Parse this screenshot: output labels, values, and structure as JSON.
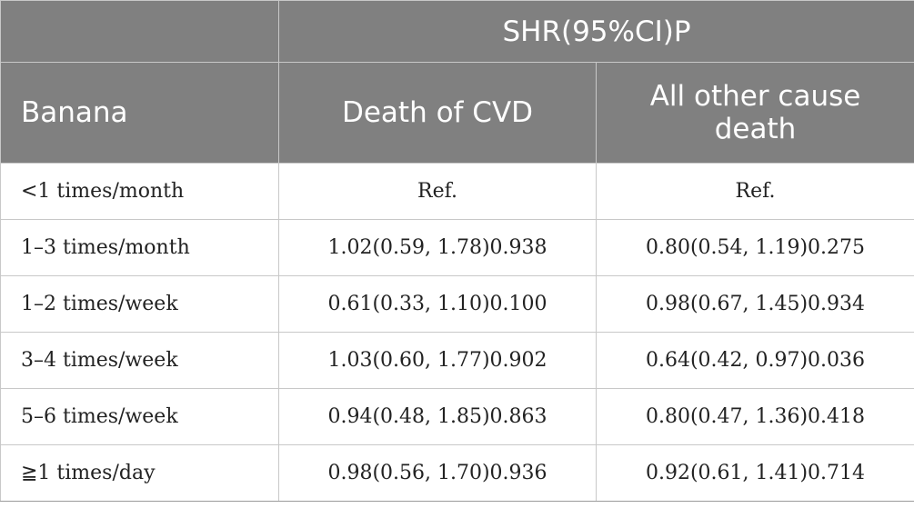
{
  "table": {
    "group_header": "SHR(95%CI)P",
    "columns": [
      "Banana",
      "Death of CVD",
      "All other cause death"
    ],
    "rows": [
      {
        "label": "<1 times/month",
        "cvd": "Ref.",
        "other": "Ref."
      },
      {
        "label": "1–3 times/month",
        "cvd": "1.02(0.59, 1.78)0.938",
        "other": "0.80(0.54, 1.19)0.275"
      },
      {
        "label": "1–2 times/week",
        "cvd": "0.61(0.33, 1.10)0.100",
        "other": "0.98(0.67, 1.45)0.934"
      },
      {
        "label": "3–4 times/week",
        "cvd": "1.03(0.60, 1.77)0.902",
        "other": "0.64(0.42, 0.97)0.036"
      },
      {
        "label": "5–6 times/week",
        "cvd": "0.94(0.48, 1.85)0.863",
        "other": "0.80(0.47, 1.36)0.418"
      },
      {
        "label": "≧1 times/day",
        "cvd": "0.98(0.56, 1.70)0.936",
        "other": "0.92(0.61, 1.41)0.714"
      }
    ]
  }
}
